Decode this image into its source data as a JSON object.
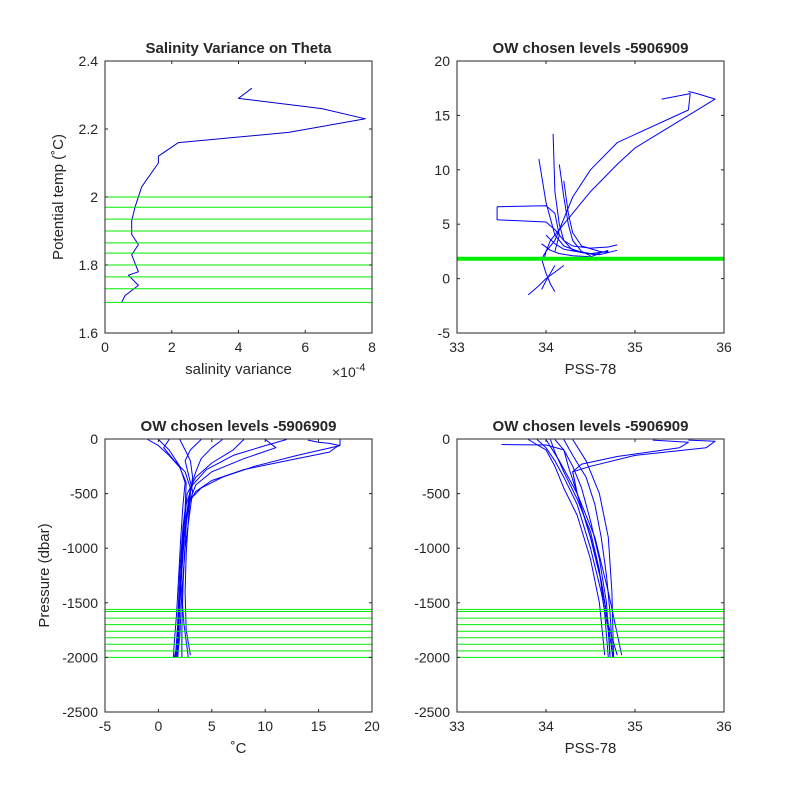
{
  "chart_data": [
    {
      "type": "line",
      "title": "Salinity Variance on Theta",
      "xlabel": "salinity variance",
      "ylabel": "Potential temp (˚C)",
      "xlim": [
        0,
        8
      ],
      "ylim": [
        1.6,
        2.4
      ],
      "xticks": [
        0,
        2,
        4,
        6,
        8
      ],
      "yticks": [
        1.6,
        1.8,
        2,
        2.2,
        2.4
      ],
      "xtick_labels": [
        "0",
        "2",
        "4",
        "6",
        "8"
      ],
      "ytick_labels": [
        "1.6",
        "1.8",
        "2",
        "2.2",
        "2.4"
      ],
      "x_exponent_base": "×10",
      "x_exponent_power": "-4",
      "series": [
        {
          "color": "#0000cc",
          "x": [
            4.4,
            4.0,
            6.5,
            7.8,
            5.5,
            2.2,
            1.6,
            1.6,
            1.1,
            0.9,
            0.8,
            0.8,
            1.0,
            0.8,
            1.0,
            0.7,
            1.0,
            0.6,
            0.5
          ],
          "y": [
            2.32,
            2.29,
            2.26,
            2.23,
            2.19,
            2.16,
            2.12,
            2.1,
            2.03,
            1.97,
            1.93,
            1.89,
            1.86,
            1.83,
            1.78,
            1.77,
            1.74,
            1.71,
            1.69
          ]
        }
      ],
      "hlines": {
        "color": "#00ee00",
        "y": [
          1.69,
          1.73,
          1.765,
          1.8,
          1.835,
          1.865,
          1.9,
          1.935,
          1.97,
          2.0
        ]
      }
    },
    {
      "type": "line",
      "title": "OW chosen levels -5906909",
      "xlabel": "PSS-78",
      "ylabel": "",
      "xlim": [
        33,
        36
      ],
      "ylim": [
        -5,
        20
      ],
      "xticks": [
        33,
        34,
        35,
        36
      ],
      "yticks": [
        -5,
        0,
        5,
        10,
        15,
        20
      ],
      "xtick_labels": [
        "33",
        "34",
        "35",
        "36"
      ],
      "ytick_labels": [
        "-5",
        "0",
        "5",
        "10",
        "15",
        "20"
      ],
      "series": [
        {
          "color": "#0000ff",
          "x": [
            35.6,
            35.7,
            35.9,
            35.0,
            34.8,
            34.5,
            34.3,
            34.15,
            34.05,
            34.0,
            33.95,
            34.0,
            34.05,
            34.1
          ],
          "y": [
            17.2,
            17.0,
            16.5,
            12.0,
            10.5,
            8.0,
            6.0,
            4.5,
            3.5,
            2.5,
            1.8,
            0.5,
            -0.5,
            -1.2
          ]
        },
        {
          "color": "#0000ff",
          "x": [
            35.3,
            35.62,
            35.6,
            34.8,
            34.5,
            34.3,
            34.2,
            34.1,
            34.0,
            33.98
          ],
          "y": [
            16.5,
            17.0,
            15.5,
            12.5,
            10.0,
            7.5,
            5.5,
            3.5,
            2.5,
            1.8
          ]
        },
        {
          "color": "#0000ff",
          "x": [
            33.45,
            33.45,
            34.0,
            34.1,
            34.2,
            34.3,
            34.5,
            34.7,
            34.8
          ],
          "y": [
            6.6,
            5.4,
            5.2,
            4.5,
            3.5,
            3.0,
            2.8,
            2.9,
            3.1
          ]
        },
        {
          "color": "#0000ff",
          "x": [
            33.45,
            34.0,
            34.1,
            34.15,
            34.1
          ],
          "y": [
            6.6,
            6.7,
            6.0,
            4.0,
            2.5
          ]
        },
        {
          "color": "#0000ff",
          "x": [
            34.08,
            34.1,
            34.15,
            34.2,
            34.3,
            34.5,
            34.7
          ],
          "y": [
            13.3,
            8.0,
            5.0,
            3.5,
            2.6,
            2.3,
            2.5
          ]
        },
        {
          "color": "#0000ff",
          "x": [
            33.92,
            34.0,
            34.1,
            34.2,
            34.4,
            34.6,
            34.8
          ],
          "y": [
            11.0,
            7.0,
            4.0,
            3.0,
            2.4,
            2.2,
            2.6
          ]
        },
        {
          "color": "#0000ff",
          "x": [
            34.15,
            34.2,
            34.25,
            34.3,
            34.4,
            34.5
          ],
          "y": [
            10.5,
            7.5,
            5.0,
            3.5,
            2.5,
            2.1
          ]
        },
        {
          "color": "#0000ff",
          "x": [
            34.2,
            34.25,
            34.3,
            34.4,
            34.6,
            34.7
          ],
          "y": [
            9.0,
            6.0,
            4.2,
            3.0,
            2.5,
            2.4
          ]
        },
        {
          "color": "#0000ff",
          "x": [
            34.0,
            34.1,
            34.2,
            34.4,
            34.55,
            34.7
          ],
          "y": [
            4.0,
            3.2,
            2.7,
            2.4,
            2.2,
            2.6
          ]
        },
        {
          "color": "#0000ff",
          "x": [
            33.95,
            34.05,
            34.15,
            34.3,
            34.5,
            34.6
          ],
          "y": [
            3.2,
            2.6,
            2.3,
            2.1,
            2.0,
            2.3
          ]
        },
        {
          "color": "#0000ff",
          "x": [
            33.8,
            33.9,
            34.0,
            34.1,
            34.2
          ],
          "y": [
            -1.5,
            -0.8,
            0.0,
            0.6,
            1.2
          ]
        },
        {
          "color": "#0000ff",
          "x": [
            33.95,
            34.0,
            34.05,
            34.1
          ],
          "y": [
            -1.0,
            -0.2,
            0.5,
            1.2
          ]
        }
      ],
      "hlines": {
        "color": "#00ee00",
        "y": [
          1.7,
          1.75,
          1.8,
          1.85,
          1.9,
          1.95
        ]
      }
    },
    {
      "type": "line",
      "title": "OW chosen levels -5906909",
      "xlabel": "˚C",
      "ylabel": "Pressure (dbar)",
      "xlim": [
        -5,
        20
      ],
      "ylim": [
        -2500,
        0
      ],
      "xticks": [
        -5,
        0,
        5,
        10,
        15,
        20
      ],
      "yticks": [
        -2500,
        -2000,
        -1500,
        -1000,
        -500,
        0
      ],
      "xtick_labels": [
        "-5",
        "0",
        "5",
        "10",
        "15",
        "20"
      ],
      "ytick_labels": [
        "-2500",
        "-2000",
        "-1500",
        "-1000",
        "-500",
        "0"
      ],
      "series": [
        {
          "color": "#0000ff",
          "x": [
            17.0,
            17.0,
            16.0,
            12.0,
            8.0,
            5.0,
            3.5,
            2.8,
            2.4,
            2.2,
            2.0,
            1.9,
            1.8
          ],
          "y": [
            -5,
            -50,
            -120,
            -200,
            -280,
            -380,
            -480,
            -600,
            -800,
            -1100,
            -1500,
            -1800,
            -2000
          ]
        },
        {
          "color": "#0000ff",
          "x": [
            14.0,
            15.0,
            16.0,
            17.0,
            13.0,
            9.0,
            6.0,
            4.0,
            3.0,
            2.5,
            2.2,
            1.9,
            1.8
          ],
          "y": [
            -10,
            -30,
            -40,
            -60,
            -150,
            -250,
            -350,
            -450,
            -550,
            -800,
            -1200,
            -1700,
            -2000
          ]
        },
        {
          "color": "#0000ff",
          "x": [
            10.0,
            11.0,
            8.0,
            5.0,
            3.5,
            2.8,
            2.4,
            2.1,
            1.9,
            1.7
          ],
          "y": [
            -5,
            -80,
            -180,
            -300,
            -420,
            -600,
            -900,
            -1300,
            -1700,
            -2000
          ]
        },
        {
          "color": "#0000ff",
          "x": [
            8.0,
            7.0,
            5.0,
            3.5,
            2.7,
            2.3,
            2.0,
            1.8,
            1.6
          ],
          "y": [
            -5,
            -100,
            -220,
            -350,
            -500,
            -800,
            -1200,
            -1700,
            -2000
          ]
        },
        {
          "color": "#0000ff",
          "x": [
            1.0,
            0.5,
            1.5,
            2.5,
            3.0,
            2.8,
            2.4,
            2.1,
            1.9,
            1.7,
            1.5
          ],
          "y": [
            -5,
            -80,
            -200,
            -300,
            -450,
            -650,
            -900,
            -1300,
            -1700,
            -1900,
            -2000
          ]
        },
        {
          "color": "#0000ff",
          "x": [
            -1.0,
            0.0,
            1.0,
            2.0,
            2.6,
            2.5,
            2.2,
            2.0,
            1.8,
            1.6
          ],
          "y": [
            -5,
            -60,
            -150,
            -260,
            -400,
            -650,
            -1000,
            -1400,
            -1800,
            -2000
          ]
        },
        {
          "color": "#0000ff",
          "x": [
            4.0,
            3.0,
            2.5,
            2.8,
            3.2,
            2.9,
            2.5,
            2.2,
            2.0,
            1.8
          ],
          "y": [
            -5,
            -100,
            -200,
            -320,
            -480,
            -700,
            -1000,
            -1400,
            -1800,
            -2000
          ]
        },
        {
          "color": "#0000ff",
          "x": [
            6.0,
            5.0,
            4.0,
            3.5,
            3.0,
            2.7,
            2.5,
            2.3,
            2.2,
            2.2
          ],
          "y": [
            -5,
            -80,
            -180,
            -300,
            -450,
            -650,
            -950,
            -1350,
            -1750,
            -2000
          ]
        },
        {
          "color": "#0000ff",
          "x": [
            0.0,
            1.0,
            2.0,
            2.5,
            2.3,
            2.1,
            1.9,
            1.7,
            1.5,
            1.4
          ],
          "y": [
            -5,
            -100,
            -250,
            -400,
            -600,
            -900,
            -1250,
            -1600,
            -1850,
            -2000
          ]
        },
        {
          "color": "#0000ff",
          "x": [
            12.0,
            10.0,
            7.0,
            4.5,
            3.2,
            2.6,
            2.3,
            2.1,
            2.4,
            2.8
          ],
          "y": [
            -5,
            -60,
            -150,
            -280,
            -420,
            -600,
            -900,
            -1300,
            -1700,
            -2000
          ]
        },
        {
          "color": "#0000ff",
          "x": [
            2.0,
            2.5,
            3.0,
            3.2,
            3.0,
            2.8,
            2.6,
            2.5,
            2.6,
            3.0
          ],
          "y": [
            -5,
            -100,
            -200,
            -350,
            -500,
            -750,
            -1050,
            -1400,
            -1750,
            -1980
          ]
        }
      ],
      "hlines": {
        "color": "#00ee00",
        "y": [
          -2000,
          -1940,
          -1880,
          -1820,
          -1760,
          -1700,
          -1640,
          -1580,
          -1560
        ]
      }
    },
    {
      "type": "line",
      "title": "OW chosen levels -5906909",
      "xlabel": "PSS-78",
      "ylabel": "",
      "xlim": [
        33,
        36
      ],
      "ylim": [
        -2500,
        0
      ],
      "xticks": [
        33,
        34,
        35,
        36
      ],
      "yticks": [
        -2500,
        -2000,
        -1500,
        -1000,
        -500,
        0
      ],
      "xtick_labels": [
        "33",
        "34",
        "35",
        "36"
      ],
      "ytick_labels": [
        "-2500",
        "-2000",
        "-1500",
        "-1000",
        "-500",
        "0"
      ],
      "series": [
        {
          "color": "#0000ff",
          "x": [
            35.6,
            35.9,
            35.8,
            35.0,
            34.5,
            34.3,
            34.35,
            34.5,
            34.62,
            34.7,
            34.72
          ],
          "y": [
            -10,
            -20,
            -80,
            -150,
            -250,
            -300,
            -500,
            -900,
            -1300,
            -1700,
            -2000
          ]
        },
        {
          "color": "#0000ff",
          "x": [
            35.2,
            35.6,
            35.5,
            34.8,
            34.4,
            34.3,
            34.35,
            34.5,
            34.62,
            34.7,
            34.75
          ],
          "y": [
            -10,
            -30,
            -80,
            -160,
            -230,
            -300,
            -500,
            -900,
            -1300,
            -1700,
            -2000
          ]
        },
        {
          "color": "#0000ff",
          "x": [
            33.5,
            34.0,
            34.2,
            34.25,
            34.35,
            34.5,
            34.62,
            34.7,
            34.8
          ],
          "y": [
            -50,
            -55,
            -100,
            -250,
            -500,
            -900,
            -1300,
            -1700,
            -1980
          ]
        },
        {
          "color": "#0000ff",
          "x": [
            33.9,
            34.0,
            34.1,
            34.2,
            34.35,
            34.5,
            34.62,
            34.7,
            34.72
          ],
          "y": [
            -5,
            -80,
            -200,
            -350,
            -600,
            -1000,
            -1400,
            -1750,
            -2000
          ]
        },
        {
          "color": "#0000ff",
          "x": [
            34.1,
            34.2,
            34.3,
            34.4,
            34.5,
            34.6,
            34.68,
            34.72
          ],
          "y": [
            -5,
            -100,
            -250,
            -450,
            -750,
            -1100,
            -1500,
            -2000
          ]
        },
        {
          "color": "#0000ff",
          "x": [
            33.8,
            34.0,
            34.1,
            34.2,
            34.35,
            34.5,
            34.6,
            34.66
          ],
          "y": [
            -5,
            -100,
            -250,
            -450,
            -700,
            -1100,
            -1500,
            -1980
          ]
        },
        {
          "color": "#0000ff",
          "x": [
            34.2,
            34.3,
            34.45,
            34.55,
            34.62,
            34.68,
            34.72,
            34.75
          ],
          "y": [
            -5,
            -150,
            -350,
            -600,
            -900,
            -1250,
            -1600,
            -2000
          ]
        },
        {
          "color": "#0000ff",
          "x": [
            34.05,
            34.1,
            34.2,
            34.35,
            34.5,
            34.6,
            34.66,
            34.7
          ],
          "y": [
            -5,
            -120,
            -300,
            -550,
            -850,
            -1200,
            -1600,
            -2000
          ]
        },
        {
          "color": "#0000ff",
          "x": [
            34.3,
            34.45,
            34.6,
            34.7,
            34.74,
            34.76
          ],
          "y": [
            -5,
            -200,
            -500,
            -900,
            -1400,
            -2000
          ]
        },
        {
          "color": "#0000ff",
          "x": [
            34.0,
            34.15,
            34.35,
            34.55,
            34.7,
            34.85
          ],
          "y": [
            -5,
            -200,
            -500,
            -900,
            -1400,
            -1980
          ]
        }
      ],
      "hlines": {
        "color": "#00ee00",
        "y": [
          -2000,
          -1940,
          -1880,
          -1820,
          -1760,
          -1700,
          -1640,
          -1580,
          -1560
        ]
      }
    }
  ]
}
